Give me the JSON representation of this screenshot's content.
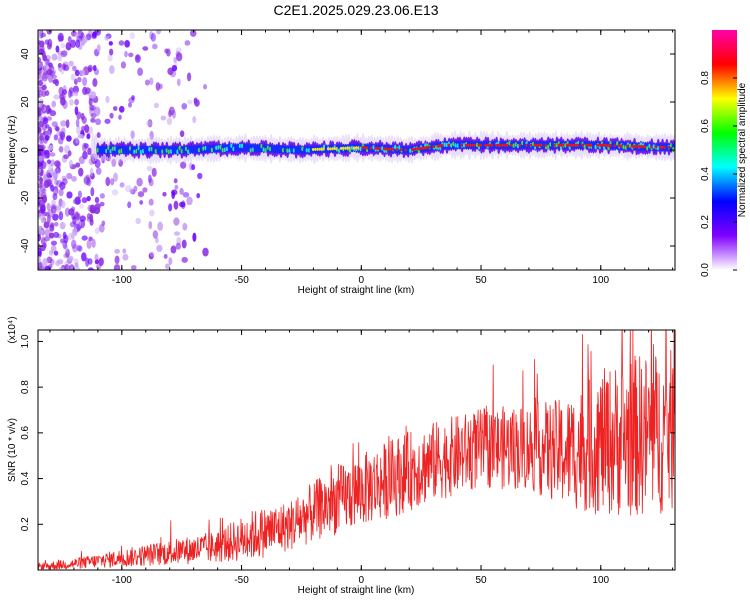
{
  "figure_title": "C2E1.2025.029.23.06.E13",
  "chart_data": [
    {
      "type": "heatmap",
      "xlabel": "Height of straight line (km)",
      "ylabel": "Frequency (Hz)",
      "xlim": [
        -135,
        131
      ],
      "ylim": [
        -50,
        50
      ],
      "xticks": [
        "-100",
        "-50",
        "0",
        "50",
        "100"
      ],
      "xtick_values": [
        -100,
        -50,
        0,
        50,
        100
      ],
      "yticks": [
        "40",
        "20",
        "0",
        "-20",
        "-40"
      ],
      "ytick_values": [
        40,
        20,
        0,
        -20,
        -40
      ],
      "colorbar": {
        "label": "Normalized spectral amplitude",
        "range": [
          0,
          1
        ],
        "ticks": [
          "0.0",
          "0.2",
          "0.4",
          "0.6",
          "0.8"
        ],
        "tick_values": [
          0,
          0.2,
          0.4,
          0.6,
          0.8
        ],
        "colormap": [
          "#ffffff",
          "#8000ff",
          "#0000ff",
          "#00ffff",
          "#00ff00",
          "#ffff00",
          "#ff0000",
          "#ff00aa"
        ]
      },
      "ridge_frequency_hz": [
        {
          "x": -110,
          "y": 0
        },
        {
          "x": -75,
          "y": 0
        },
        {
          "x": -50,
          "y": 1
        },
        {
          "x": -25,
          "y": 0
        },
        {
          "x": 0,
          "y": 1
        },
        {
          "x": 20,
          "y": 0
        },
        {
          "x": 35,
          "y": 2
        },
        {
          "x": 50,
          "y": 2
        },
        {
          "x": 100,
          "y": 2
        },
        {
          "x": 130,
          "y": 1
        }
      ],
      "grid": false
    },
    {
      "type": "line",
      "xlabel": "Height of straight line (km)",
      "ylabel": "SNR (10 * v/v)",
      "y_multiplier": "(x10⁴)",
      "xlim": [
        -135,
        131
      ],
      "ylim": [
        0,
        1.05
      ],
      "xticks": [
        "-100",
        "-50",
        "0",
        "50",
        "100"
      ],
      "xtick_values": [
        -100,
        -50,
        0,
        50,
        100
      ],
      "yticks": [
        "0.2",
        "0.4",
        "0.6",
        "0.8",
        "1.0"
      ],
      "ytick_values": [
        0.2,
        0.4,
        0.6,
        0.8,
        1.0
      ],
      "series": [
        {
          "color": "#ee2222",
          "envelope": [
            {
              "x": -135,
              "base": 0.01,
              "spread": 0.02
            },
            {
              "x": -120,
              "base": 0.02,
              "spread": 0.03
            },
            {
              "x": -100,
              "base": 0.04,
              "spread": 0.05
            },
            {
              "x": -80,
              "base": 0.06,
              "spread": 0.07
            },
            {
              "x": -60,
              "base": 0.08,
              "spread": 0.09
            },
            {
              "x": -45,
              "base": 0.12,
              "spread": 0.14
            },
            {
              "x": -30,
              "base": 0.16,
              "spread": 0.14
            },
            {
              "x": -15,
              "base": 0.24,
              "spread": 0.18
            },
            {
              "x": 0,
              "base": 0.3,
              "spread": 0.2
            },
            {
              "x": 15,
              "base": 0.36,
              "spread": 0.22
            },
            {
              "x": 30,
              "base": 0.42,
              "spread": 0.22
            },
            {
              "x": 50,
              "base": 0.48,
              "spread": 0.22
            },
            {
              "x": 70,
              "base": 0.48,
              "spread": 0.24
            },
            {
              "x": 85,
              "base": 0.44,
              "spread": 0.3
            },
            {
              "x": 100,
              "base": 0.46,
              "spread": 0.4
            },
            {
              "x": 115,
              "base": 0.48,
              "spread": 0.45
            },
            {
              "x": 131,
              "base": 0.5,
              "spread": 0.45
            }
          ]
        }
      ],
      "grid": false
    }
  ]
}
